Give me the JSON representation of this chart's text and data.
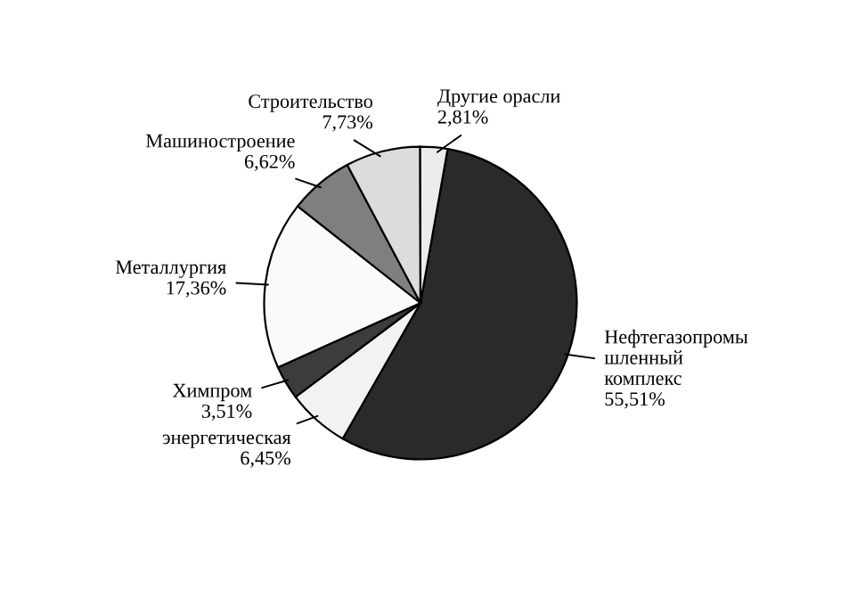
{
  "chart_data": {
    "type": "pie",
    "categories": [
      "Нефтегазопромы\nшленный\nкомплекс",
      "энергетическая",
      "Химпром",
      "Металлургия",
      "Машиностроение",
      "Строительство",
      "Другие орасли"
    ],
    "values": [
      55.51,
      6.45,
      3.51,
      17.36,
      6.62,
      7.73,
      2.81
    ],
    "value_labels": [
      "55,51%",
      "6,45%",
      "3,51%",
      "17,36%",
      "6,62%",
      "7,73%",
      "2,81%"
    ],
    "colors": [
      "#2a2a2a",
      "#f2f2f2",
      "#3c3c3c",
      "#fafafa",
      "#7f7f7f",
      "#dcdcdc",
      "#ececec"
    ],
    "legend": false
  }
}
